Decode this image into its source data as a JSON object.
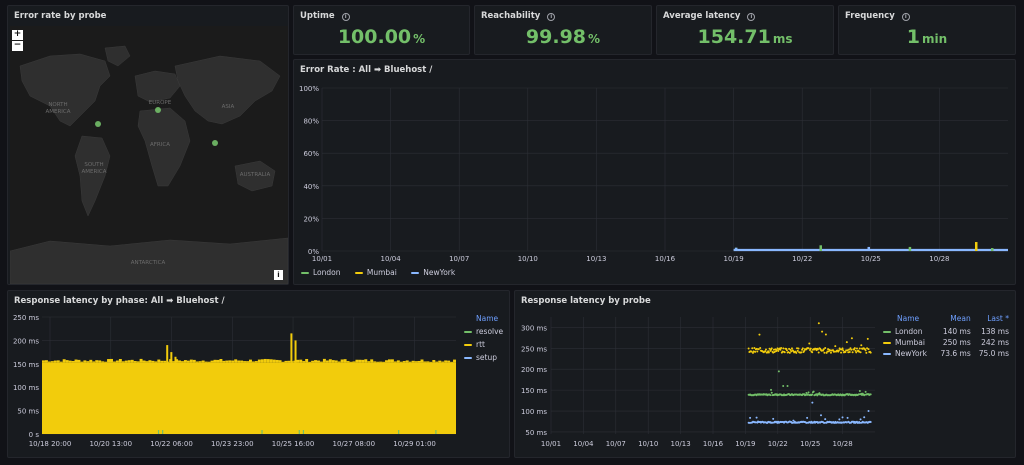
{
  "map_panel": {
    "title": "Error rate by probe",
    "zoom_in": "+",
    "zoom_out": "−",
    "info": "i",
    "labels": [
      {
        "text": "NORTH\nAMERICA",
        "name": "north-america"
      },
      {
        "text": "EUROPE",
        "name": "europe"
      },
      {
        "text": "ASIA",
        "name": "asia"
      },
      {
        "text": "AFRICA",
        "name": "africa"
      },
      {
        "text": "SOUTH\nAMERICA",
        "name": "south-america"
      },
      {
        "text": "AUSTRALIA",
        "name": "australia"
      },
      {
        "text": "ANTARCTICA",
        "name": "antarctica"
      }
    ]
  },
  "stats": [
    {
      "title": "Uptime",
      "value": "100.00",
      "unit": "%"
    },
    {
      "title": "Reachability",
      "value": "99.98",
      "unit": "%"
    },
    {
      "title": "Average latency",
      "value": "154.71",
      "unit": "ms"
    },
    {
      "title": "Frequency",
      "value": "1",
      "unit": "min"
    }
  ],
  "colors": {
    "green": "#73bf69",
    "yellow": "#f2cc0c",
    "blue": "#8ab8ff",
    "header_blue": "#6e9fff",
    "grid": "#2c2f36"
  },
  "error_rate": {
    "title": "Error Rate : All ➡ Bluehost /",
    "chart_data": {
      "type": "bar",
      "x_ticks": [
        "10/01",
        "10/04",
        "10/07",
        "10/10",
        "10/13",
        "10/16",
        "10/19",
        "10/22",
        "10/25",
        "10/28"
      ],
      "y_ticks": [
        "0%",
        "20%",
        "40%",
        "60%",
        "80%",
        "100%"
      ],
      "ylim": [
        0,
        100
      ],
      "series": [
        {
          "name": "London",
          "color": "#73bf69",
          "points": [
            [
              18.1,
              2.0
            ],
            [
              21.8,
              3.5
            ],
            [
              25.7,
              2.5
            ],
            [
              29.3,
              1.8
            ]
          ]
        },
        {
          "name": "Mumbai",
          "color": "#f2cc0c",
          "points": [
            [
              28.6,
              5.5
            ]
          ]
        },
        {
          "name": "NewYork",
          "color": "#8ab8ff",
          "points": [
            [
              18.1,
              2.0
            ],
            [
              23.9,
              2.5
            ]
          ]
        }
      ],
      "legend": [
        "London",
        "Mumbai",
        "NewYork"
      ]
    }
  },
  "latency_phase": {
    "title": "Response latency by phase: All ➡ Bluehost /",
    "legend_header": "Name",
    "chart_data": {
      "type": "bar",
      "x_ticks": [
        "10/18 20:00",
        "10/20 13:00",
        "10/22 06:00",
        "10/23 23:00",
        "10/25 16:00",
        "10/27 08:00",
        "10/29 01:00"
      ],
      "y_ticks": [
        "0 s",
        "50 ms",
        "100 ms",
        "150 ms",
        "200 ms",
        "250 ms"
      ],
      "ylim": [
        0,
        250
      ],
      "series": [
        {
          "name": "resolve",
          "color": "#73bf69",
          "baseline_ms": 1
        },
        {
          "name": "rtt",
          "color": "#f2cc0c",
          "baseline_ms": 152,
          "spikes": [
            [
              0.3,
              190
            ],
            [
              0.31,
              175
            ],
            [
              0.32,
              165
            ],
            [
              0.6,
              215
            ],
            [
              0.61,
              200
            ]
          ]
        },
        {
          "name": "setup",
          "color": "#8ab8ff",
          "baseline_ms": 0
        }
      ]
    }
  },
  "latency_probe": {
    "title": "Response latency by probe",
    "headers": {
      "name": "Name",
      "mean": "Mean",
      "last": "Last *"
    },
    "rows": [
      {
        "name": "London",
        "mean": "140 ms",
        "last": "138 ms",
        "color": "#73bf69"
      },
      {
        "name": "Mumbai",
        "mean": "250 ms",
        "last": "242 ms",
        "color": "#f2cc0c"
      },
      {
        "name": "NewYork",
        "mean": "73.6 ms",
        "last": "75.0 ms",
        "color": "#8ab8ff"
      }
    ],
    "chart_data": {
      "type": "scatter",
      "x_ticks": [
        "10/01",
        "10/04",
        "10/07",
        "10/10",
        "10/13",
        "10/16",
        "10/19",
        "10/22",
        "10/25",
        "10/28"
      ],
      "y_ticks": [
        "50 ms",
        "100 ms",
        "150 ms",
        "200 ms",
        "250 ms",
        "300 ms"
      ],
      "ylim": [
        45,
        325
      ],
      "series": [
        {
          "name": "London",
          "color": "#73bf69",
          "x_range": [
            18.3,
            29.6
          ],
          "mean": 139
        },
        {
          "name": "Mumbai",
          "color": "#f2cc0c",
          "x_range": [
            18.3,
            29.6
          ],
          "mean": 245
        },
        {
          "name": "NewYork",
          "color": "#8ab8ff",
          "x_range": [
            18.3,
            29.6
          ],
          "mean": 73
        }
      ]
    }
  }
}
